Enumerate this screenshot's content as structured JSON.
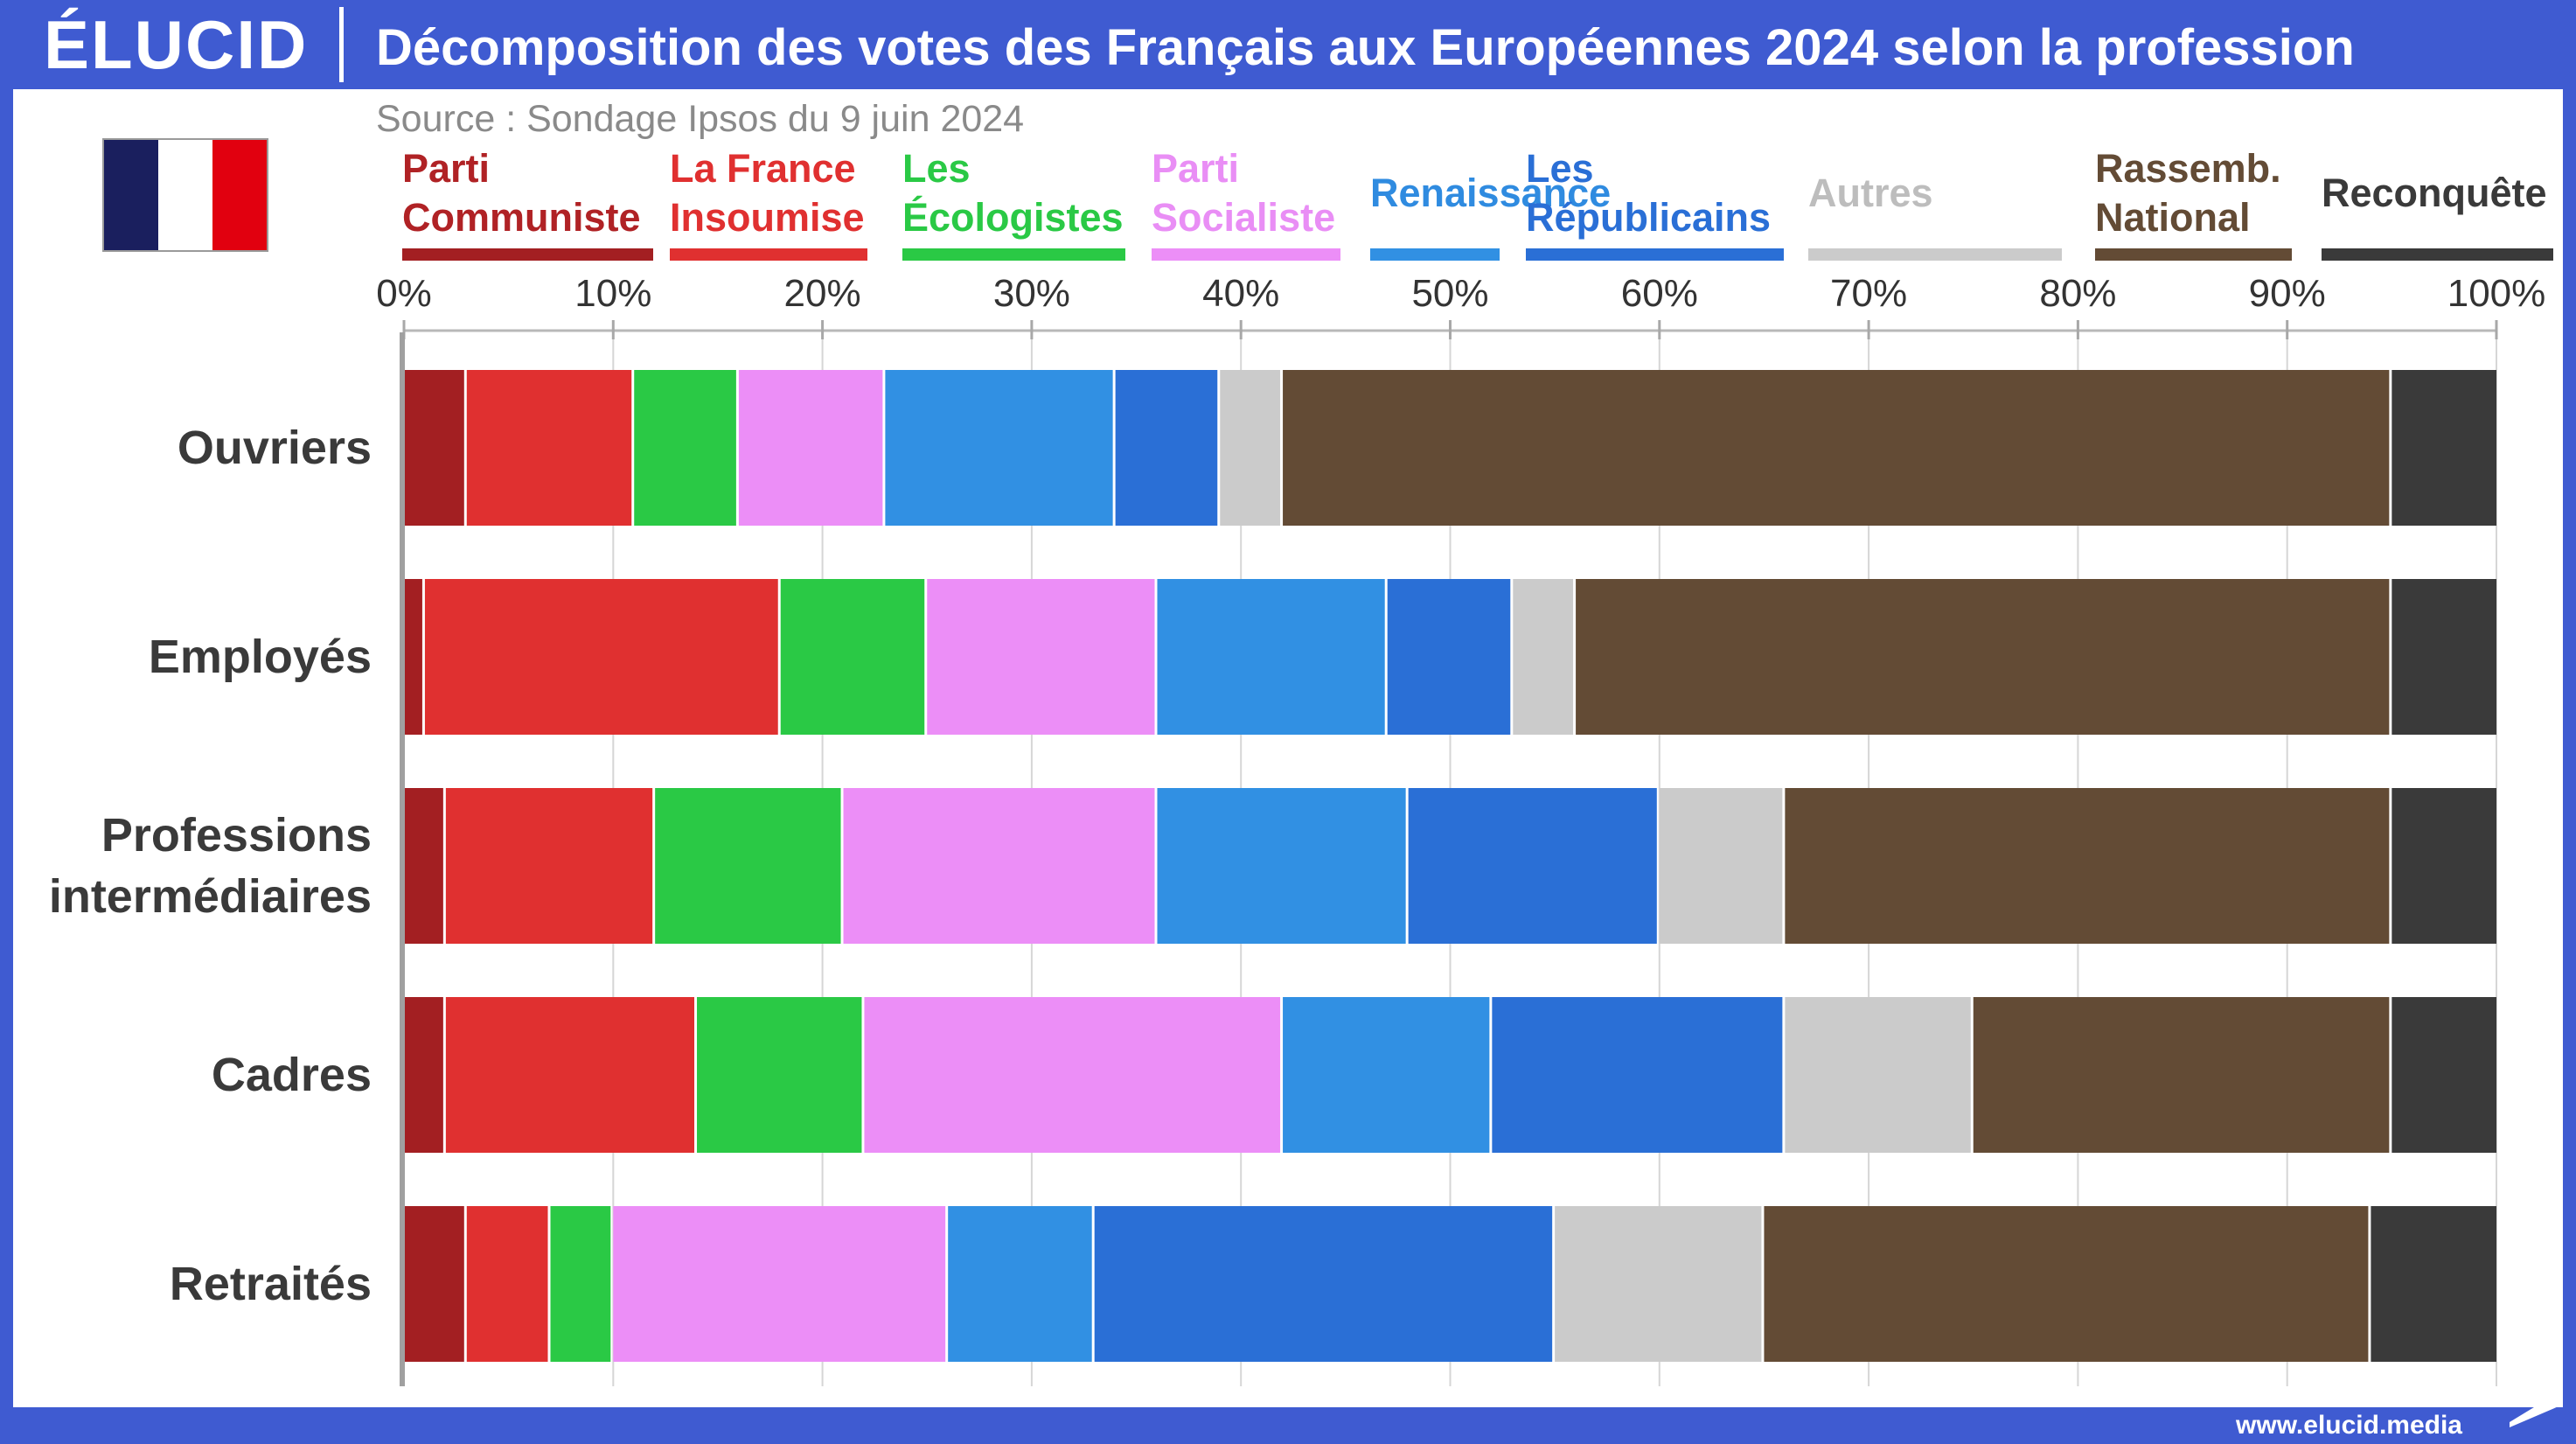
{
  "header": {
    "logo": "ÉLUCID",
    "title": "Décomposition des votes des Français aux Européennes 2024 selon la profession"
  },
  "source": "Source : Sondage Ipsos du 9 juin 2024",
  "footer": {
    "url": "www.elucid.media"
  },
  "flag": {
    "colors": [
      "#1a1f5e",
      "#ffffff",
      "#e1000f"
    ]
  },
  "chart_data": {
    "type": "bar",
    "orientation": "horizontal",
    "stacked": true,
    "title": "Décomposition des votes des Français aux Européennes 2024 selon la profession",
    "xlim": [
      0,
      100
    ],
    "x_ticks": [
      "0%",
      "10%",
      "20%",
      "30%",
      "40%",
      "50%",
      "60%",
      "70%",
      "80%",
      "90%",
      "100%"
    ],
    "grid": "vertical",
    "legend_position": "top",
    "categories": [
      "Ouvriers",
      "Employés",
      "Professions intermédiaires",
      "Cadres",
      "Retraités"
    ],
    "category_labels": [
      [
        "Ouvriers"
      ],
      [
        "Employés"
      ],
      [
        "Professions",
        "intermédiaires"
      ],
      [
        "Cadres"
      ],
      [
        "Retraités"
      ]
    ],
    "series": [
      {
        "name": "Parti Communiste",
        "label_lines": [
          "Parti",
          "Communiste"
        ],
        "color": "#a31f22",
        "text_color": "#b02225",
        "values": [
          3,
          1,
          2,
          2,
          3
        ]
      },
      {
        "name": "La France Insoumise",
        "label_lines": [
          "La France",
          "Insoumise"
        ],
        "color": "#e03030",
        "text_color": "#e03030",
        "values": [
          8,
          17,
          10,
          12,
          4
        ]
      },
      {
        "name": "Les Écologistes",
        "label_lines": [
          "Les",
          "Écologistes"
        ],
        "color": "#2ac945",
        "text_color": "#2ac945",
        "values": [
          5,
          7,
          9,
          8,
          3
        ]
      },
      {
        "name": "Parti Socialiste",
        "label_lines": [
          "Parti",
          "Socialiste"
        ],
        "color": "#ec8ef7",
        "text_color": "#e98ef5",
        "values": [
          7,
          11,
          15,
          20,
          16
        ]
      },
      {
        "name": "Renaissance",
        "label_lines": [
          "Renaissance"
        ],
        "color": "#3190e3",
        "text_color": "#2f8be0",
        "values": [
          11,
          11,
          12,
          10,
          7
        ]
      },
      {
        "name": "Les Républicains",
        "label_lines": [
          "Les",
          "Républicains"
        ],
        "color": "#2a6fd6",
        "text_color": "#2a6fd6",
        "values": [
          5,
          6,
          12,
          14,
          22
        ]
      },
      {
        "name": "Autres",
        "label_lines": [
          "Autres"
        ],
        "color": "#cbcbcb",
        "text_color": "#bdbdbd",
        "values": [
          3,
          3,
          6,
          9,
          10
        ]
      },
      {
        "name": "Rassemb. National",
        "label_lines": [
          "Rassemb.",
          "National"
        ],
        "color": "#634b35",
        "text_color": "#634b35",
        "values": [
          53,
          39,
          29,
          20,
          29
        ]
      },
      {
        "name": "Reconquête",
        "label_lines": [
          "Reconquête"
        ],
        "color": "#3a3a3a",
        "text_color": "#3a3a3a",
        "values": [
          5,
          5,
          5,
          5,
          6
        ]
      }
    ]
  }
}
